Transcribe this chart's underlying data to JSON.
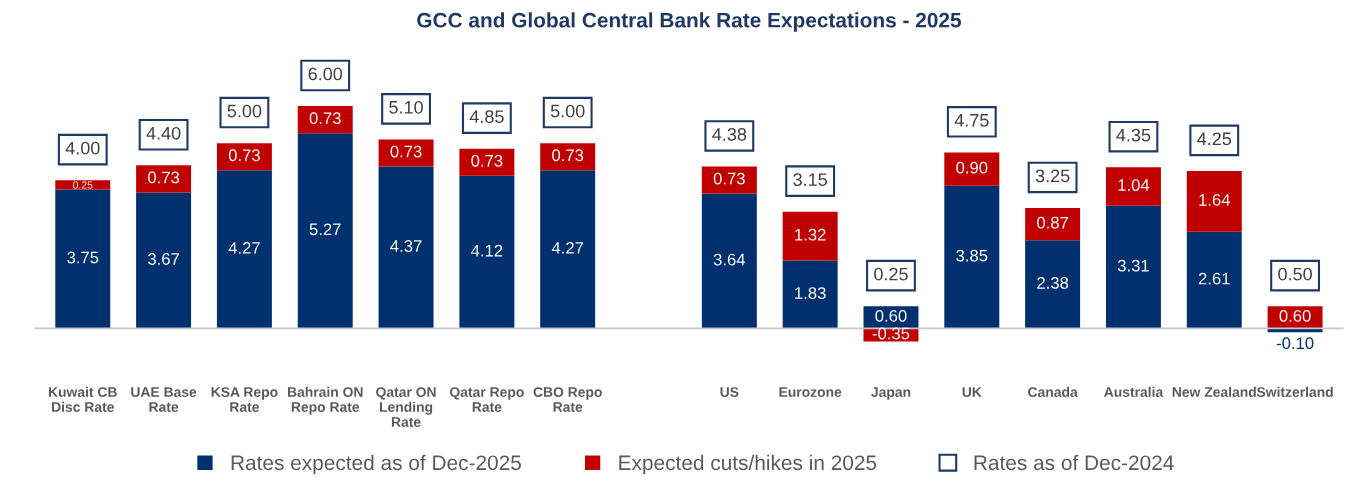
{
  "chart_data": {
    "type": "bar",
    "title": "GCC and Global Central Bank Rate Expectations - 2025",
    "stacked": true,
    "legend": "bottom",
    "categories": [
      "Kuwait CB Disc Rate",
      "UAE Base Rate",
      "KSA Repo Rate",
      "Bahrain ON Repo Rate",
      "Qatar ON Lending Rate",
      "Qatar Repo Rate",
      "CBO Repo Rate",
      null,
      "US",
      "Eurozone",
      "Japan",
      "UK",
      "Canada",
      "Australia",
      "New Zealand",
      "Switzerland"
    ],
    "series": [
      {
        "name": "Rates expected as of Dec-2025",
        "color": "#00306e",
        "values": [
          3.75,
          3.67,
          4.27,
          5.27,
          4.37,
          4.12,
          4.27,
          null,
          3.64,
          1.83,
          0.6,
          3.85,
          2.38,
          3.31,
          2.61,
          -0.1
        ],
        "value_labels": [
          "3.75",
          "3.67",
          "4.27",
          "5.27",
          "4.37",
          "4.12",
          "4.27",
          null,
          "3.64",
          "1.83",
          "0.60",
          "3.85",
          "2.38",
          "3.31",
          "2.61",
          "-0.10"
        ]
      },
      {
        "name": "Expected cuts/hikes in 2025",
        "color": "#c00000",
        "values": [
          0.25,
          0.73,
          0.73,
          0.73,
          0.73,
          0.73,
          0.73,
          null,
          0.73,
          1.32,
          -0.35,
          0.9,
          0.87,
          1.04,
          1.64,
          0.6
        ],
        "value_labels": [
          "0.25",
          "0.73",
          "0.73",
          "0.73",
          "0.73",
          "0.73",
          "0.73",
          null,
          "0.73",
          "1.32",
          "-0.35",
          "0.90",
          "0.87",
          "1.04",
          "1.64",
          "0.60"
        ]
      },
      {
        "name": "Rates as of Dec-2024",
        "color": "#1f3864",
        "type": "other",
        "values": [
          null,
          null,
          null,
          null,
          null,
          null,
          null,
          null,
          null,
          null,
          null,
          null,
          null,
          null,
          null,
          null
        ]
      }
    ],
    "totals": [
      "4.00",
      "4.40",
      "5.00",
      "6.00",
      "5.10",
      "4.85",
      "5.00",
      null,
      "4.38",
      "3.15",
      "0.25",
      "4.75",
      "3.25",
      "4.35",
      "4.25",
      "0.50"
    ]
  }
}
